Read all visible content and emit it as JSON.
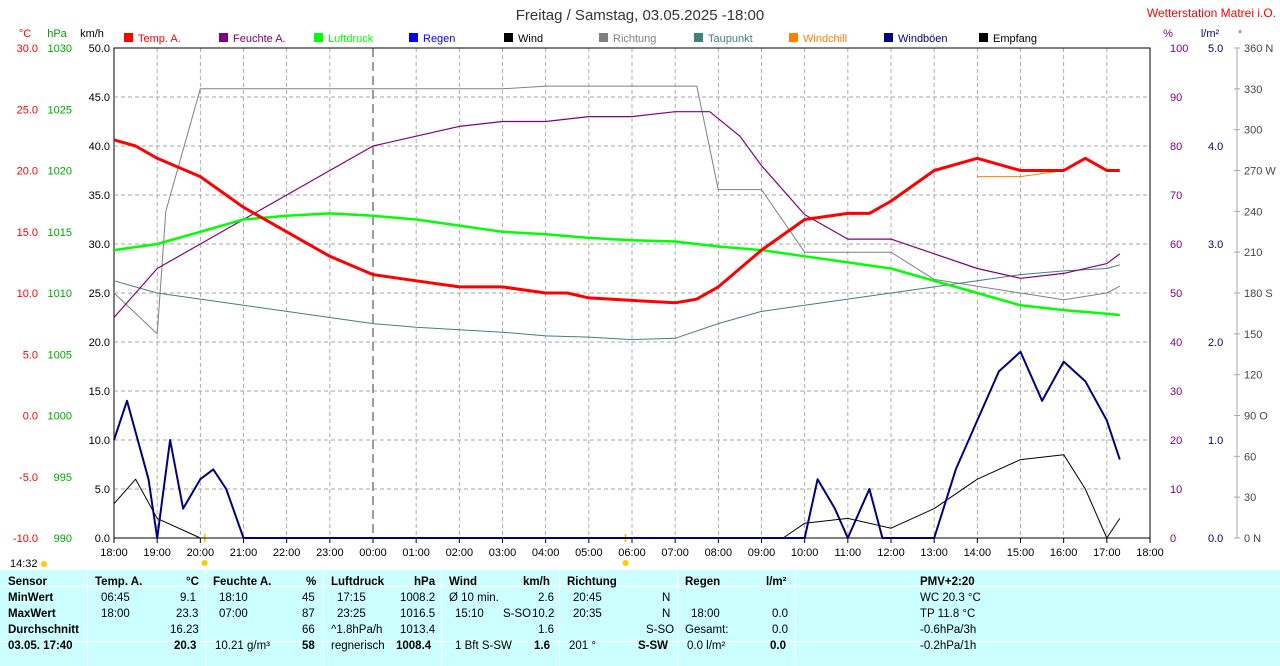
{
  "title": "Freitag / Samstag, 03.05.2025  -18:00",
  "station": "Wetterstation Matrei i.O.",
  "time_label": "14:32",
  "units": {
    "temp": "°C",
    "hpa": "hPa",
    "kmh": "km/h",
    "pct": "%",
    "rain": "l/m²",
    "star": "*"
  },
  "legend": [
    {
      "label": "Temp. A.",
      "color": "#ff0000"
    },
    {
      "label": "Feuchte A.",
      "color": "#800080"
    },
    {
      "label": "Luftdruck",
      "color": "#00ff00"
    },
    {
      "label": "Regen",
      "color": "#0000ff"
    },
    {
      "label": "Wind",
      "color": "#000000"
    },
    {
      "label": "Richtung",
      "color": "#808080"
    },
    {
      "label": "Taupunkt",
      "color": "#408080"
    },
    {
      "label": "Windchill",
      "color": "#ff8000"
    },
    {
      "label": "Windböen",
      "color": "#000080"
    },
    {
      "label": "Empfang",
      "color": "#000000"
    }
  ],
  "axes": {
    "temp": [
      "30.0",
      "25.0",
      "20.0",
      "15.0",
      "10.0",
      "5.0",
      "0.0",
      "-5.0",
      "-10.0"
    ],
    "hpa": [
      "1030",
      "1025",
      "1020",
      "1015",
      "1010",
      "1005",
      "1000",
      "995",
      "990"
    ],
    "kmh": [
      "50.0",
      "45.0",
      "40.0",
      "35.0",
      "30.0",
      "25.0",
      "20.0",
      "15.0",
      "10.0",
      "5.0",
      "0.0"
    ],
    "pct": [
      "100",
      "90",
      "80",
      "70",
      "60",
      "50",
      "40",
      "30",
      "20",
      "10",
      "0"
    ],
    "rain": [
      "5.0",
      "4.0",
      "3.0",
      "2.0",
      "1.0",
      "0.0"
    ],
    "dir": [
      "360 N",
      "330",
      "300",
      "270 W",
      "240",
      "210",
      "180 S",
      "150",
      "120",
      "90 O",
      "60",
      "30",
      "0 N"
    ],
    "time": [
      "18:00",
      "19:00",
      "20:00",
      "21:00",
      "22:00",
      "23:00",
      "00:00",
      "01:00",
      "02:00",
      "03:00",
      "04:00",
      "05:00",
      "06:00",
      "07:00",
      "08:00",
      "09:00",
      "10:00",
      "11:00",
      "12:00",
      "13:00",
      "14:00",
      "15:00",
      "16:00",
      "17:00",
      "18:00"
    ]
  },
  "chart_data": {
    "type": "line",
    "x_unit": "hours since 18:00",
    "series": [
      {
        "name": "Temp. A.",
        "unit": "°C",
        "points": [
          [
            0,
            22.5
          ],
          [
            0.5,
            22
          ],
          [
            1,
            21
          ],
          [
            2,
            19.5
          ],
          [
            3,
            17
          ],
          [
            4,
            15
          ],
          [
            5,
            13
          ],
          [
            6,
            11.5
          ],
          [
            7,
            11
          ],
          [
            8,
            10.5
          ],
          [
            9,
            10.5
          ],
          [
            10,
            10
          ],
          [
            10.5,
            10
          ],
          [
            11,
            9.6
          ],
          [
            12,
            9.4
          ],
          [
            13,
            9.2
          ],
          [
            13.5,
            9.5
          ],
          [
            14,
            10.5
          ],
          [
            15,
            13.5
          ],
          [
            16,
            16
          ],
          [
            17,
            16.5
          ],
          [
            17.5,
            16.5
          ],
          [
            18,
            17.5
          ],
          [
            19,
            20
          ],
          [
            20,
            21
          ],
          [
            20.5,
            20.5
          ],
          [
            21,
            20
          ],
          [
            22,
            20
          ],
          [
            22.5,
            21
          ],
          [
            23,
            20
          ],
          [
            23.3,
            20
          ]
        ]
      },
      {
        "name": "Feuchte A.",
        "unit": "%",
        "points": [
          [
            0,
            45
          ],
          [
            1,
            55
          ],
          [
            2,
            60
          ],
          [
            3,
            65
          ],
          [
            4,
            70
          ],
          [
            5,
            75
          ],
          [
            6,
            80
          ],
          [
            7,
            82
          ],
          [
            8,
            84
          ],
          [
            9,
            85
          ],
          [
            10,
            85
          ],
          [
            11,
            86
          ],
          [
            12,
            86
          ],
          [
            13,
            87
          ],
          [
            13.8,
            87
          ],
          [
            14.5,
            82
          ],
          [
            15,
            76
          ],
          [
            16,
            66
          ],
          [
            17,
            61
          ],
          [
            18,
            61
          ],
          [
            19,
            58
          ],
          [
            20,
            55
          ],
          [
            21,
            53
          ],
          [
            22,
            54
          ],
          [
            23,
            56
          ],
          [
            23.3,
            58
          ]
        ]
      },
      {
        "name": "Luftdruck",
        "unit": "hPa",
        "points": [
          [
            0,
            1013.5
          ],
          [
            1,
            1014
          ],
          [
            2,
            1015
          ],
          [
            3,
            1016
          ],
          [
            4,
            1016.3
          ],
          [
            5,
            1016.5
          ],
          [
            6,
            1016.3
          ],
          [
            7,
            1016
          ],
          [
            8,
            1015.5
          ],
          [
            9,
            1015
          ],
          [
            10,
            1014.8
          ],
          [
            11,
            1014.5
          ],
          [
            12,
            1014.3
          ],
          [
            13,
            1014.2
          ],
          [
            14,
            1013.8
          ],
          [
            15,
            1013.5
          ],
          [
            16,
            1013
          ],
          [
            17,
            1012.5
          ],
          [
            18,
            1012
          ],
          [
            19,
            1011
          ],
          [
            20,
            1010
          ],
          [
            21,
            1009
          ],
          [
            22,
            1008.6
          ],
          [
            23,
            1008.3
          ],
          [
            23.3,
            1008.2
          ]
        ]
      },
      {
        "name": "Wind",
        "unit": "km/h",
        "points": [
          [
            0,
            3.5
          ],
          [
            0.5,
            6
          ],
          [
            1,
            2
          ],
          [
            2,
            0
          ],
          [
            10,
            0
          ],
          [
            15.5,
            0
          ],
          [
            16,
            1.5
          ],
          [
            17,
            2
          ],
          [
            18,
            1
          ],
          [
            19,
            3
          ],
          [
            20,
            6
          ],
          [
            21,
            8
          ],
          [
            22,
            8.5
          ],
          [
            22.5,
            5
          ],
          [
            23,
            0
          ],
          [
            23.3,
            2
          ]
        ]
      },
      {
        "name": "Richtung",
        "unit": "°",
        "points": [
          [
            0,
            180
          ],
          [
            1,
            150
          ],
          [
            1.2,
            240
          ],
          [
            2,
            330
          ],
          [
            3,
            330
          ],
          [
            4,
            330
          ],
          [
            5,
            330
          ],
          [
            6,
            330
          ],
          [
            7,
            330
          ],
          [
            8,
            330
          ],
          [
            9,
            330
          ],
          [
            10,
            332
          ],
          [
            12,
            332
          ],
          [
            13,
            332
          ],
          [
            13.5,
            332
          ],
          [
            14,
            256
          ],
          [
            15,
            256
          ],
          [
            16,
            210
          ],
          [
            17,
            210
          ],
          [
            18,
            210
          ],
          [
            19,
            190
          ],
          [
            20,
            185
          ],
          [
            21,
            180
          ],
          [
            22,
            175
          ],
          [
            23,
            180
          ],
          [
            23.3,
            185
          ]
        ]
      },
      {
        "name": "Taupunkt",
        "unit": "°C",
        "points": [
          [
            0,
            11
          ],
          [
            1,
            10
          ],
          [
            2,
            9.5
          ],
          [
            3,
            9
          ],
          [
            4,
            8.5
          ],
          [
            5,
            8
          ],
          [
            6,
            7.5
          ],
          [
            7,
            7.2
          ],
          [
            8,
            7
          ],
          [
            9,
            6.8
          ],
          [
            10,
            6.5
          ],
          [
            11,
            6.4
          ],
          [
            12,
            6.2
          ],
          [
            13,
            6.3
          ],
          [
            14,
            7.5
          ],
          [
            15,
            8.5
          ],
          [
            16,
            9
          ],
          [
            17,
            9.5
          ],
          [
            18,
            10
          ],
          [
            19,
            10.5
          ],
          [
            20,
            11
          ],
          [
            21,
            11.5
          ],
          [
            22,
            11.8
          ],
          [
            23,
            12
          ],
          [
            23.3,
            12.3
          ]
        ]
      },
      {
        "name": "Windchill",
        "unit": "°C",
        "points": [
          [
            20,
            19.5
          ],
          [
            21,
            19.5
          ],
          [
            22,
            20
          ]
        ]
      },
      {
        "name": "Windböen",
        "unit": "km/h",
        "points": [
          [
            0,
            10
          ],
          [
            0.3,
            14
          ],
          [
            0.8,
            6
          ],
          [
            1,
            0
          ],
          [
            1.3,
            10
          ],
          [
            1.6,
            3
          ],
          [
            2,
            6
          ],
          [
            2.3,
            7
          ],
          [
            2.6,
            5
          ],
          [
            3,
            0
          ],
          [
            16,
            0
          ],
          [
            16.3,
            6
          ],
          [
            16.7,
            3
          ],
          [
            17,
            0
          ],
          [
            17.5,
            5
          ],
          [
            17.8,
            0
          ],
          [
            19,
            0
          ],
          [
            19.5,
            7
          ],
          [
            20,
            12
          ],
          [
            20.5,
            17
          ],
          [
            21,
            19
          ],
          [
            21.5,
            14
          ],
          [
            22,
            18
          ],
          [
            22.5,
            16
          ],
          [
            23,
            12
          ],
          [
            23.3,
            8
          ]
        ]
      },
      {
        "name": "Empfang",
        "unit": "%",
        "points": [
          [
            0,
            100
          ],
          [
            6,
            100
          ],
          [
            12,
            100
          ],
          [
            17,
            100
          ],
          [
            18,
            100
          ],
          [
            19,
            100
          ],
          [
            20,
            100
          ],
          [
            21,
            100
          ],
          [
            22,
            100
          ],
          [
            23,
            100
          ],
          [
            23.3,
            100
          ]
        ]
      }
    ]
  },
  "table": {
    "headers": {
      "sensor": "Sensor",
      "temp": "Temp. A.",
      "temp_unit": "°C",
      "hum": "Feuchte A.",
      "hum_unit": "%",
      "press": "Luftdruck",
      "press_unit": "hPa",
      "wind": "Wind",
      "wind_unit": "km/h",
      "dir": "Richtung",
      "rain": "Regen",
      "rain_unit": "l/m²",
      "pmv": "PMV+2:20"
    },
    "rows": {
      "min": "MinWert",
      "max": "MaxWert",
      "avg": "Durchschnitt",
      "now": "03.05. 17:40"
    },
    "temp": {
      "min_time": "06:45",
      "min": "9.1",
      "max_time": "18:00",
      "max": "23.3",
      "avg": "16.23",
      "now": "20.3"
    },
    "hum": {
      "min_time": "18:10",
      "min": "45",
      "max_time": "07:00",
      "max": "87",
      "avg": "66",
      "abs": "10.21 g/m³",
      "now": "58"
    },
    "press": {
      "min_time": "17:15",
      "min": "1008.2",
      "max_time": "23:25",
      "max": "1016.5",
      "trend": "^1.8hPa/h",
      "avg": "1013.4",
      "desc": "regnerisch",
      "now": "1008.4"
    },
    "wind": {
      "avg_label": "Ø 10 min.",
      "avg": "2.6",
      "max_time": "15:10",
      "max_dir": "S-SO",
      "max": "10.2",
      "mean": "1.6",
      "bft": "1 Bft S-SW",
      "now": "1.6"
    },
    "dir": {
      "t1": "20:45",
      "d1": "N",
      "t2": "20:35",
      "d2": "N",
      "avg": "S-SO",
      "now_deg": "201 °",
      "now": "S-SW"
    },
    "rain": {
      "time": "18:00",
      "v1": "0.0",
      "total_label": "Gesamt:",
      "total": "0.0",
      "v3": "0.0 l/m²",
      "now": "0.0"
    },
    "pmv": {
      "wc": "WC 20.3 °C",
      "tp": "TP 11.8 °C",
      "p3": "-0.6hPa/3h",
      "p1": "-0.2hPa/1h"
    }
  }
}
